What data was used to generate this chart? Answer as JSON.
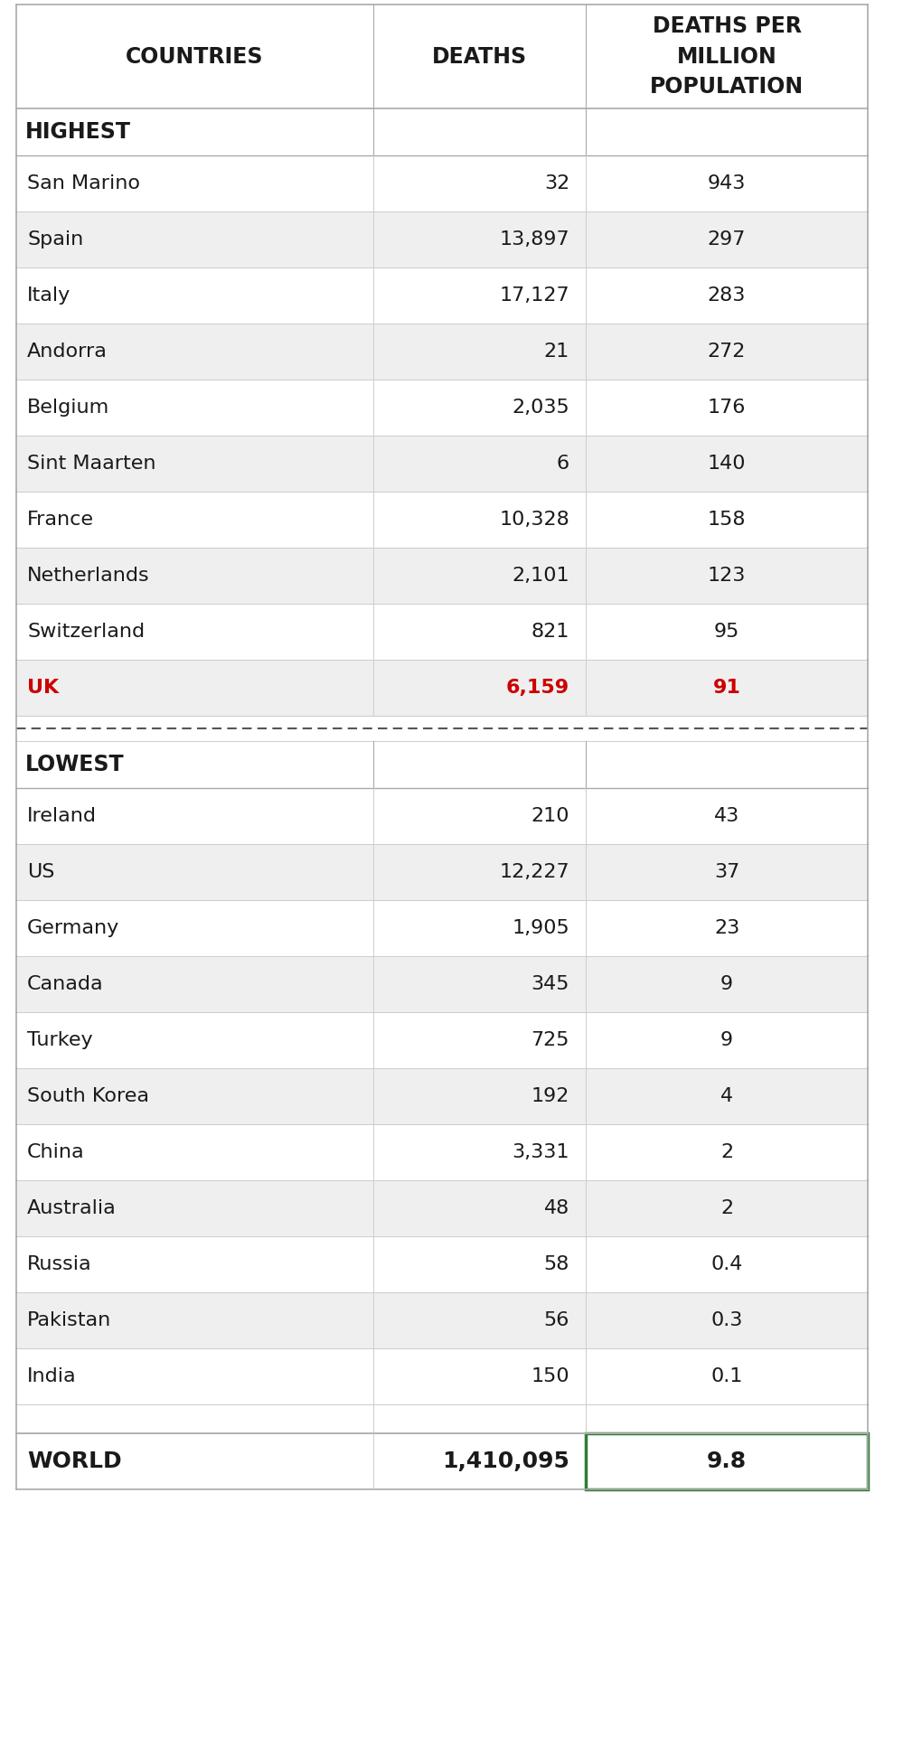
{
  "col_headers": [
    "COUNTRIES",
    "DEATHS",
    "DEATHS PER\nMILLION\nPOPULATION"
  ],
  "highest_label": "HIGHEST",
  "lowest_label": "LOWEST",
  "highest_rows": [
    [
      "San Marino",
      "32",
      "943"
    ],
    [
      "Spain",
      "13,897",
      "297"
    ],
    [
      "Italy",
      "17,127",
      "283"
    ],
    [
      "Andorra",
      "21",
      "272"
    ],
    [
      "Belgium",
      "2,035",
      "176"
    ],
    [
      "Sint Maarten",
      "6",
      "140"
    ],
    [
      "France",
      "10,328",
      "158"
    ],
    [
      "Netherlands",
      "2,101",
      "123"
    ],
    [
      "Switzerland",
      "821",
      "95"
    ],
    [
      "UK",
      "6,159",
      "91"
    ]
  ],
  "lowest_rows": [
    [
      "Ireland",
      "210",
      "43"
    ],
    [
      "US",
      "12,227",
      "37"
    ],
    [
      "Germany",
      "1,905",
      "23"
    ],
    [
      "Canada",
      "345",
      "9"
    ],
    [
      "Turkey",
      "725",
      "9"
    ],
    [
      "South Korea",
      "192",
      "4"
    ],
    [
      "China",
      "3,331",
      "2"
    ],
    [
      "Australia",
      "48",
      "2"
    ],
    [
      "Russia",
      "58",
      "0.4"
    ],
    [
      "Pakistan",
      "56",
      "0.3"
    ],
    [
      "India",
      "150",
      "0.1"
    ]
  ],
  "world_row": [
    "WORLD",
    "1,410,095",
    "9.8"
  ],
  "uk_color": "#cc0000",
  "row_bg_even": "#efefef",
  "row_bg_odd": "#ffffff",
  "grid_color": "#bbbbbb",
  "text_color": "#1a1a1a",
  "bold_color": "#1a1a1a",
  "world_box_color": "#2e7d32",
  "separator_color": "#555555",
  "header_fontsize": 17,
  "section_fontsize": 17,
  "data_fontsize": 16,
  "world_fontsize": 18
}
